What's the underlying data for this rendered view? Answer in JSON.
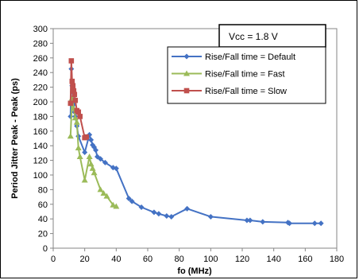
{
  "chart_data": {
    "type": "line",
    "title": "",
    "xlabel": "fo (MHz)",
    "ylabel": "Period Jitter Peak - Peak (ps)",
    "xlim": [
      0,
      180
    ],
    "ylim": [
      0,
      300
    ],
    "xticks": [
      0,
      20,
      40,
      60,
      80,
      100,
      120,
      140,
      160,
      180
    ],
    "yticks": [
      0,
      20,
      40,
      60,
      80,
      100,
      120,
      140,
      160,
      180,
      200,
      220,
      240,
      260,
      280,
      300
    ],
    "grid": false,
    "legend_position": "top-right",
    "annotation": "Vcc = 1.8 V",
    "series": [
      {
        "name": "Rise/Fall time = Default",
        "color": "#4472C4",
        "marker": "diamond",
        "x": [
          11,
          11.5,
          12,
          12.5,
          13,
          13.5,
          14,
          15,
          16,
          20,
          23,
          24,
          25,
          26,
          27,
          28,
          30,
          33,
          38,
          40,
          48,
          50,
          56,
          64,
          67,
          72,
          75,
          85,
          100,
          123,
          125,
          133,
          149,
          150,
          166,
          170
        ],
        "y": [
          180,
          245,
          222,
          213,
          196,
          186,
          180,
          167,
          153,
          131,
          155,
          148,
          141,
          138,
          134,
          125,
          122,
          117,
          110,
          109,
          68,
          64,
          56,
          49,
          47,
          44,
          43,
          54,
          43,
          38,
          38,
          36,
          35,
          34,
          34,
          34
        ]
      },
      {
        "name": "Rise/Fall time = Fast",
        "color": "#9BBB59",
        "marker": "triangle",
        "x": [
          11,
          12,
          13,
          14,
          15,
          16,
          17,
          20,
          23,
          24,
          25,
          26,
          30,
          32,
          34,
          38,
          40
        ],
        "y": [
          153,
          205,
          191,
          178,
          172,
          137,
          125,
          93,
          125,
          115,
          109,
          103,
          80,
          75,
          71,
          59,
          57
        ]
      },
      {
        "name": "Rise/Fall time = Slow",
        "color": "#C0504D",
        "marker": "square",
        "x": [
          11,
          11.5,
          12,
          12.5,
          13,
          13.5,
          14,
          15,
          16,
          17,
          20,
          21
        ],
        "y": [
          198,
          256,
          228,
          222,
          215,
          210,
          202,
          188,
          186,
          180,
          151,
          152
        ]
      }
    ]
  }
}
